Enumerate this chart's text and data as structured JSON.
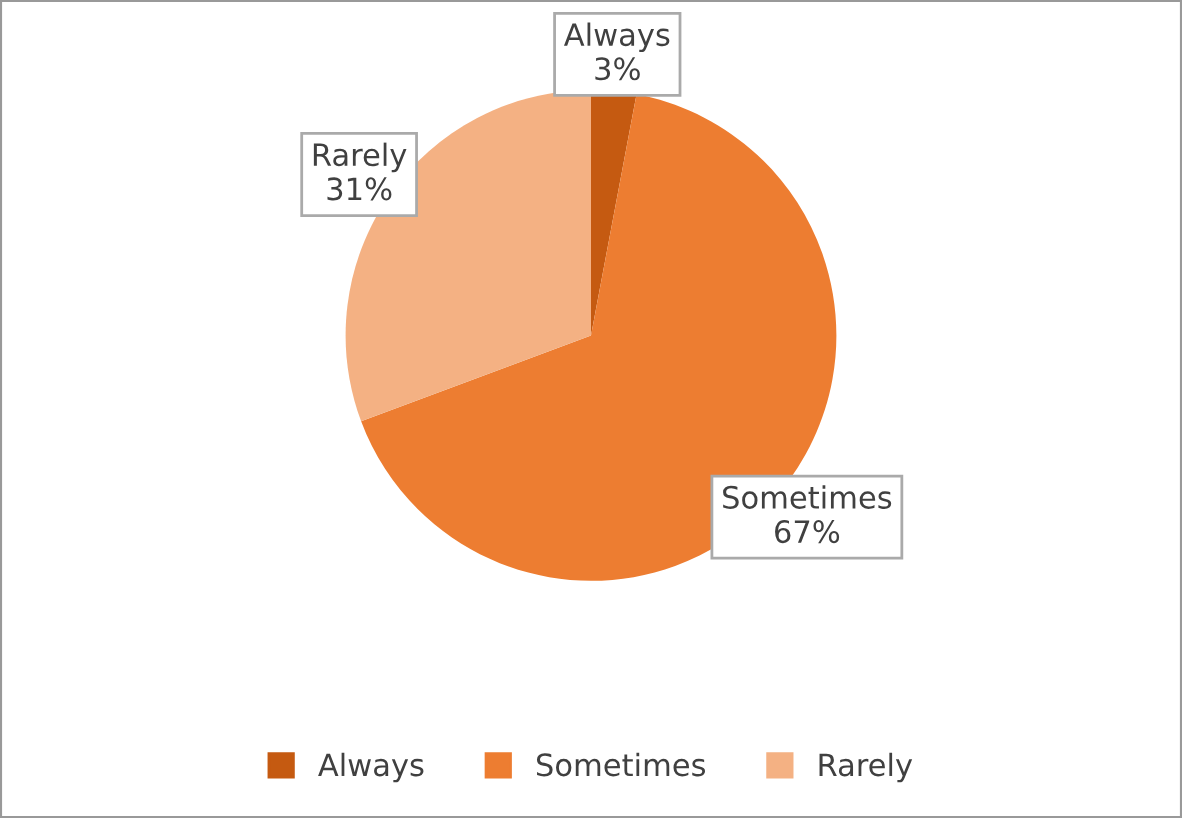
{
  "chart_data": {
    "type": "pie",
    "categories": [
      "Always",
      "Sometimes",
      "Rarely"
    ],
    "values": [
      3,
      67,
      31
    ],
    "colors": [
      "#c55a11",
      "#ed7d31",
      "#f4b183"
    ],
    "value_labels": [
      "3%",
      "67%",
      "31%"
    ],
    "legend": "bottom"
  }
}
